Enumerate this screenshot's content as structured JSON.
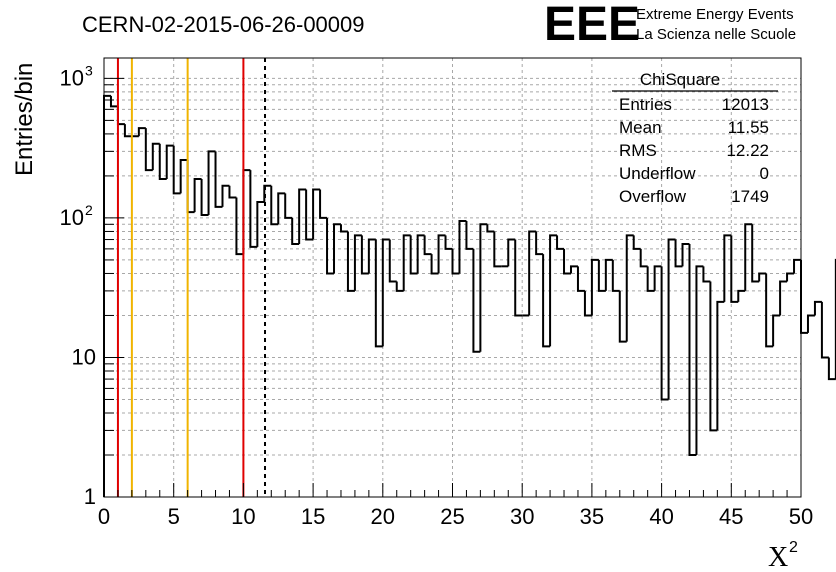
{
  "header": {
    "title": "CERN-02-2015-06-26-00009",
    "logo_text": "EEE",
    "logo_line1": "Extreme Energy Events",
    "logo_line2": "La Scienza nelle Scuole",
    "logo_color": "#1f1fe6"
  },
  "stats": {
    "title": "ChiSquare",
    "rows": [
      {
        "label": "Entries",
        "value": "12013"
      },
      {
        "label": "Mean",
        "value": "11.55"
      },
      {
        "label": "RMS",
        "value": "12.22"
      },
      {
        "label": "Underflow",
        "value": "0"
      },
      {
        "label": "Overflow",
        "value": "1749"
      }
    ]
  },
  "chart_data": {
    "type": "histogram",
    "title": "CERN-02-2015-06-26-00009",
    "ylabel": "Entries/bin",
    "xlabel_base": "X",
    "xlabel_sup": "2",
    "xlim": [
      0,
      50
    ],
    "ylim": [
      1,
      1400
    ],
    "yscale": "log",
    "grid": true,
    "bin_width": 0.5,
    "x_ticks": [
      "0",
      "5",
      "10",
      "15",
      "20",
      "25",
      "30",
      "35",
      "40",
      "45",
      "50"
    ],
    "x_tick_values": [
      0,
      5,
      10,
      15,
      20,
      25,
      30,
      35,
      40,
      45,
      50
    ],
    "y_ticks": [
      {
        "value": 1,
        "base": "1",
        "exp": ""
      },
      {
        "value": 10,
        "base": "10",
        "exp": ""
      },
      {
        "value": 100,
        "base": "10",
        "exp": "2"
      },
      {
        "value": 1000,
        "base": "10",
        "exp": "3"
      }
    ],
    "values": [
      750,
      630,
      470,
      385,
      385,
      440,
      220,
      340,
      190,
      330,
      150,
      260,
      110,
      190,
      105,
      300,
      120,
      170,
      140,
      55,
      220,
      62,
      130,
      170,
      90,
      150,
      100,
      65,
      160,
      70,
      160,
      100,
      40,
      90,
      80,
      30,
      75,
      40,
      70,
      12,
      70,
      35,
      30,
      75,
      40,
      75,
      55,
      40,
      75,
      60,
      40,
      95,
      60,
      11,
      90,
      80,
      45,
      45,
      70,
      20,
      20,
      80,
      55,
      12,
      75,
      60,
      40,
      45,
      30,
      20,
      50,
      30,
      50,
      30,
      13,
      75,
      60,
      45,
      30,
      45,
      5,
      70,
      45,
      65,
      2,
      45,
      35,
      3,
      25,
      75,
      25,
      30,
      90,
      35,
      40,
      12,
      20,
      35,
      40,
      50,
      15,
      20,
      25,
      10,
      7,
      50,
      5,
      45,
      35,
      30,
      20,
      25,
      25,
      15,
      20,
      25,
      45,
      30,
      15,
      35,
      40,
      25,
      22,
      30,
      3,
      35,
      15,
      13,
      15,
      45,
      20,
      20,
      30,
      25,
      10,
      4,
      40,
      40,
      10,
      12,
      25,
      22,
      3,
      35,
      15,
      20,
      30,
      50,
      25,
      40,
      13,
      25,
      15,
      15,
      30,
      40,
      10,
      25,
      15,
      5,
      30,
      25,
      25,
      15,
      25,
      20,
      35,
      15,
      30,
      20,
      45,
      22,
      35,
      17,
      35,
      30,
      20,
      25,
      22,
      8,
      22,
      22,
      30,
      12,
      13,
      7,
      45,
      14,
      25,
      10,
      35,
      22,
      15,
      25,
      18,
      13,
      9,
      25,
      25,
      15,
      45,
      18,
      12,
      10,
      12,
      22,
      10,
      45,
      20,
      15,
      14,
      20,
      25,
      7,
      8,
      16,
      20,
      25,
      10,
      10,
      12,
      22,
      14,
      14,
      16,
      16,
      8,
      10,
      14,
      14,
      35,
      20,
      30,
      9,
      24,
      12,
      12,
      3,
      25,
      6,
      22,
      8,
      25,
      3,
      28,
      12,
      30,
      7,
      20,
      14,
      6,
      8,
      20,
      12,
      20,
      8,
      17,
      12,
      16,
      10,
      20,
      6,
      10,
      11,
      17,
      6,
      14,
      18,
      20,
      10,
      22,
      11,
      18,
      12,
      35,
      11,
      7,
      22,
      12,
      15,
      18,
      16,
      10,
      18,
      3,
      15,
      15,
      16,
      7,
      16,
      11,
      17,
      9,
      8,
      11,
      11,
      12,
      13,
      25,
      8,
      15,
      14,
      14,
      6,
      12,
      10,
      17,
      6,
      17,
      6,
      8,
      18,
      13,
      12,
      15,
      10,
      12,
      8,
      15,
      8,
      5,
      8,
      6,
      17,
      9,
      9,
      7,
      15,
      13,
      15,
      10,
      5,
      4,
      7,
      17,
      6,
      10,
      5,
      5,
      6,
      15,
      12,
      12,
      6,
      10,
      15,
      8,
      12,
      4,
      10,
      3,
      8,
      5,
      13,
      8,
      8,
      12,
      7,
      12,
      5,
      13,
      6,
      6,
      7,
      16,
      4,
      8,
      14,
      8,
      8,
      16,
      12,
      11,
      10,
      6,
      13,
      4,
      10,
      8,
      9,
      5,
      6,
      8,
      12,
      3,
      12,
      10,
      9,
      13,
      13,
      4,
      4,
      8,
      8,
      7,
      12,
      12,
      8,
      10,
      5,
      5,
      9,
      16,
      6,
      12,
      9,
      7,
      4,
      12,
      5,
      5,
      15,
      6,
      6,
      8,
      9,
      8,
      6,
      7,
      4,
      9,
      8,
      5,
      7,
      6,
      7,
      7,
      5,
      6,
      4,
      10,
      4,
      9,
      5,
      8,
      2,
      6,
      9,
      10,
      3,
      7,
      8,
      9,
      9,
      7,
      12,
      10,
      3,
      11,
      7,
      9,
      11,
      4,
      11,
      9,
      7,
      5,
      5,
      8,
      6,
      4,
      6,
      8,
      4,
      6,
      10,
      6,
      8,
      4,
      3,
      13,
      10,
      5,
      7,
      3,
      5,
      2,
      5,
      8,
      4,
      9,
      7,
      10,
      4,
      7,
      6,
      3,
      7,
      9,
      4,
      4,
      13,
      8,
      5,
      7,
      8,
      8,
      3,
      6,
      8,
      5,
      6,
      5,
      9
    ],
    "vlines": [
      {
        "x": 1,
        "color": "#e00000",
        "style": "solid"
      },
      {
        "x": 2,
        "color": "#f0b400",
        "style": "solid"
      },
      {
        "x": 6,
        "color": "#f0b400",
        "style": "solid"
      },
      {
        "x": 10,
        "color": "#e00000",
        "style": "solid"
      },
      {
        "x": 11.55,
        "color": "#000000",
        "style": "dashed"
      }
    ]
  }
}
